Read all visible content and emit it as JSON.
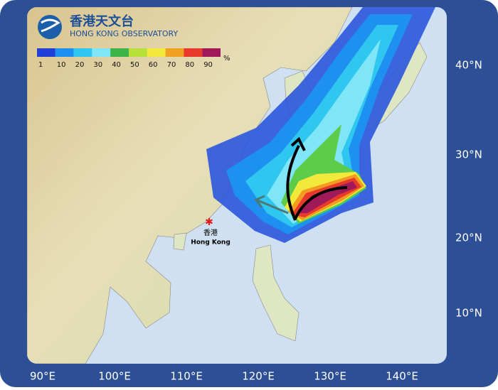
{
  "header": {
    "title_zh": "香港天文台",
    "title_en": "HONG KONG OBSERVATORY"
  },
  "legend": {
    "labels": [
      "1",
      "10",
      "20",
      "30",
      "40",
      "50",
      "60",
      "70",
      "80",
      "90"
    ],
    "unit": "%"
  },
  "axes": {
    "lat_labels": [
      "40°N",
      "30°N",
      "20°N",
      "10°N"
    ],
    "lon_labels": [
      "90°E",
      "100°E",
      "110°E",
      "120°E",
      "130°E",
      "140°E"
    ]
  },
  "place": {
    "name_zh": "香港",
    "name_en": "Hong Kong"
  }
}
